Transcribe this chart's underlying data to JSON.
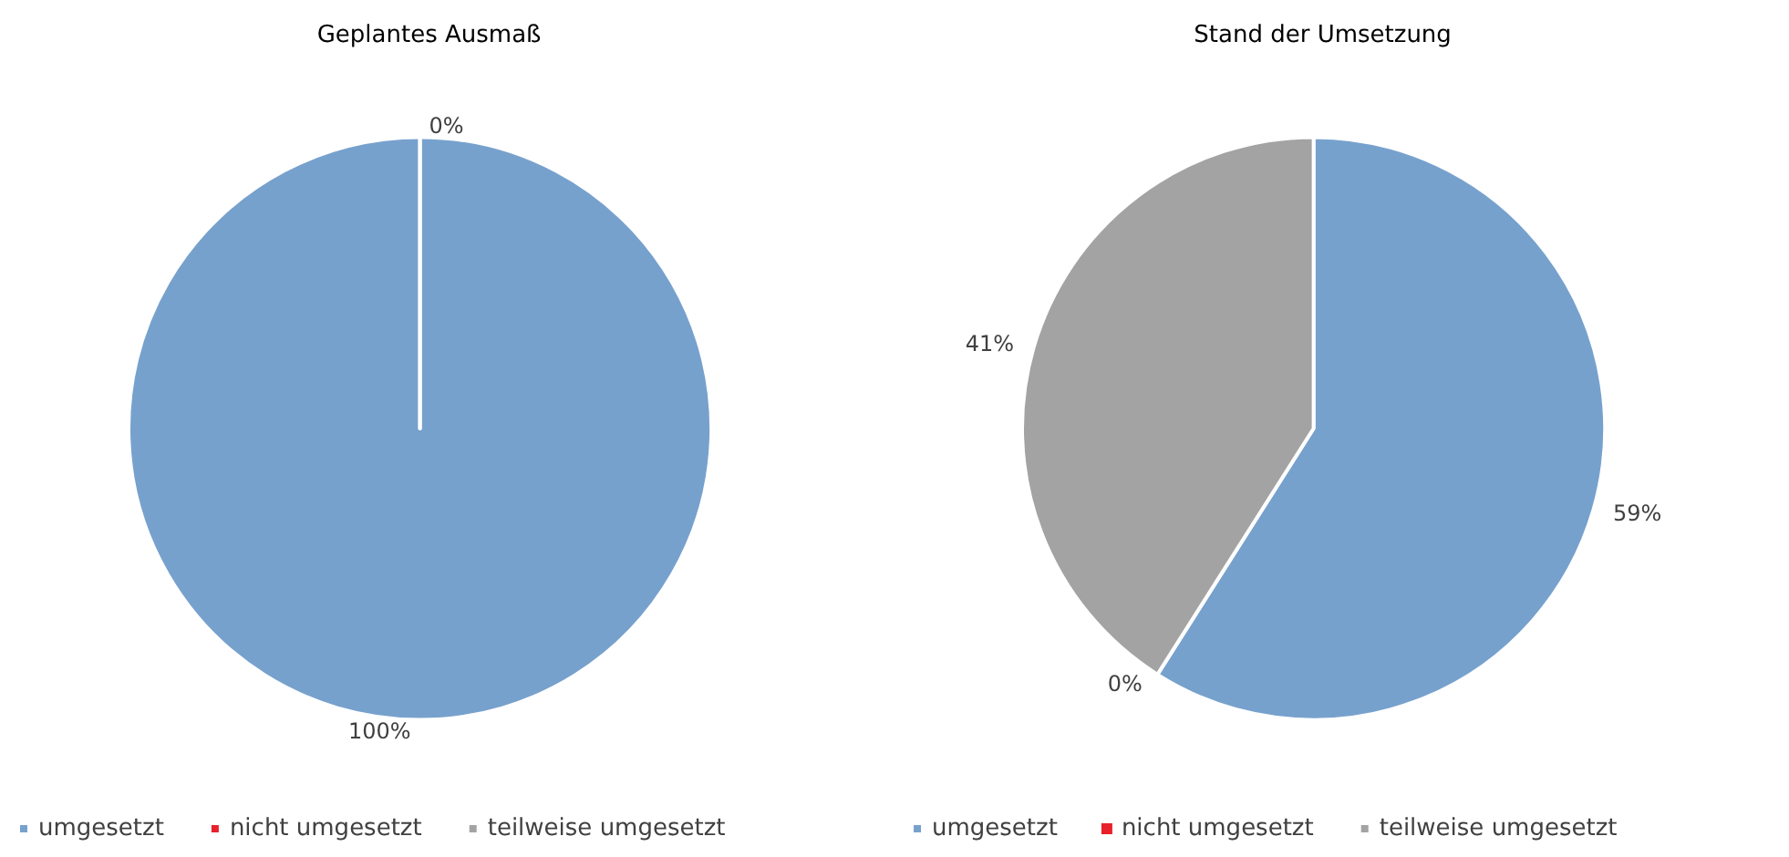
{
  "chart_data": [
    {
      "type": "pie",
      "title": "Geplantes Ausmaß",
      "categories": [
        "umgesetzt",
        "nicht umgesetzt",
        "teilweise umgesetzt"
      ],
      "values": [
        100,
        0,
        0
      ],
      "colors": [
        "#77a1cd",
        "#e8202a",
        "#a3a3a3"
      ],
      "value_labels": [
        "100%",
        "0%",
        null
      ],
      "legend": "bottom"
    },
    {
      "type": "pie",
      "title": "Stand der Umsetzung",
      "categories": [
        "umgesetzt",
        "nicht umgesetzt",
        "teilweise umgesetzt"
      ],
      "values": [
        59,
        0,
        41
      ],
      "colors": [
        "#77a1cd",
        "#e8202a",
        "#a3a3a3"
      ],
      "value_labels": [
        "59%",
        "0%",
        "41%"
      ],
      "legend": "bottom"
    }
  ]
}
